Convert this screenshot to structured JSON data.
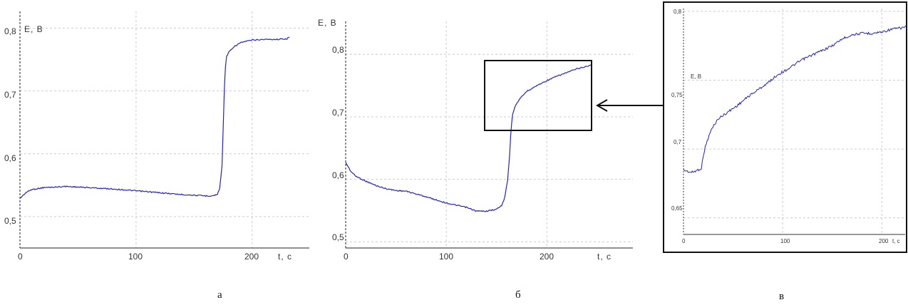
{
  "chart_data": [
    {
      "type": "line",
      "panel_label": "а",
      "ylabel": "E, B",
      "xlabel": "t, c",
      "xlim": [
        0,
        240
      ],
      "ylim": [
        0.45,
        0.83
      ],
      "x_ticks": [
        "0",
        "100",
        "200"
      ],
      "y_ticks": [
        "0,5",
        "0,6",
        "0,7",
        "0,8"
      ],
      "grid": true,
      "series": [
        {
          "color": "#2222cc",
          "x": [
            0,
            5,
            10,
            20,
            30,
            40,
            60,
            80,
            100,
            120,
            140,
            160,
            165,
            170,
            172,
            174,
            175,
            176,
            177,
            178,
            180,
            185,
            190,
            200,
            210,
            220,
            230,
            232
          ],
          "y": [
            0.529,
            0.538,
            0.543,
            0.546,
            0.547,
            0.548,
            0.546,
            0.544,
            0.541,
            0.538,
            0.535,
            0.533,
            0.533,
            0.535,
            0.545,
            0.58,
            0.64,
            0.7,
            0.74,
            0.755,
            0.762,
            0.771,
            0.777,
            0.781,
            0.782,
            0.782,
            0.783,
            0.786
          ]
        }
      ]
    },
    {
      "type": "line",
      "panel_label": "б",
      "ylabel": "E, B",
      "xlabel": "t, c",
      "xlim": [
        0,
        260
      ],
      "ylim": [
        0.49,
        0.83
      ],
      "x_ticks": [
        "0",
        "100",
        "200"
      ],
      "y_ticks": [
        "0,5",
        "0,6",
        "0,7",
        "0,8"
      ],
      "grid": true,
      "series": [
        {
          "color": "#2222cc",
          "x": [
            0,
            5,
            10,
            20,
            30,
            40,
            50,
            60,
            80,
            100,
            120,
            130,
            140,
            150,
            155,
            158,
            161,
            163,
            164,
            165,
            166,
            168,
            170,
            175,
            180,
            190,
            200,
            210,
            220,
            230,
            240,
            245
          ],
          "y": [
            0.627,
            0.613,
            0.605,
            0.597,
            0.59,
            0.585,
            0.582,
            0.581,
            0.572,
            0.562,
            0.555,
            0.549,
            0.549,
            0.552,
            0.558,
            0.57,
            0.6,
            0.64,
            0.67,
            0.69,
            0.705,
            0.714,
            0.722,
            0.732,
            0.741,
            0.75,
            0.758,
            0.765,
            0.771,
            0.777,
            0.781,
            0.783
          ]
        }
      ]
    },
    {
      "type": "line",
      "panel_label": "в",
      "ylabel": "E, B",
      "xlabel": "t, c",
      "xlim": [
        0,
        225
      ],
      "ylim": [
        0.638,
        0.802
      ],
      "x_ticks": [
        "0",
        "100",
        "200"
      ],
      "y_ticks": [
        "0,65",
        "0,7",
        "0,75",
        "0,8"
      ],
      "grid": true,
      "series": [
        {
          "color": "#2222cc",
          "x": [
            0,
            3,
            8,
            12,
            18,
            20,
            22,
            24,
            28,
            35,
            45,
            55,
            65,
            75,
            85,
            95,
            105,
            120,
            135,
            150,
            160,
            170,
            180,
            190,
            200,
            210,
            220,
            225
          ],
          "y": [
            0.685,
            0.684,
            0.683,
            0.684,
            0.686,
            0.695,
            0.702,
            0.706,
            0.714,
            0.722,
            0.727,
            0.732,
            0.738,
            0.743,
            0.748,
            0.754,
            0.758,
            0.765,
            0.77,
            0.775,
            0.78,
            0.783,
            0.784,
            0.784,
            0.785,
            0.787,
            0.788,
            0.789
          ]
        }
      ]
    }
  ]
}
